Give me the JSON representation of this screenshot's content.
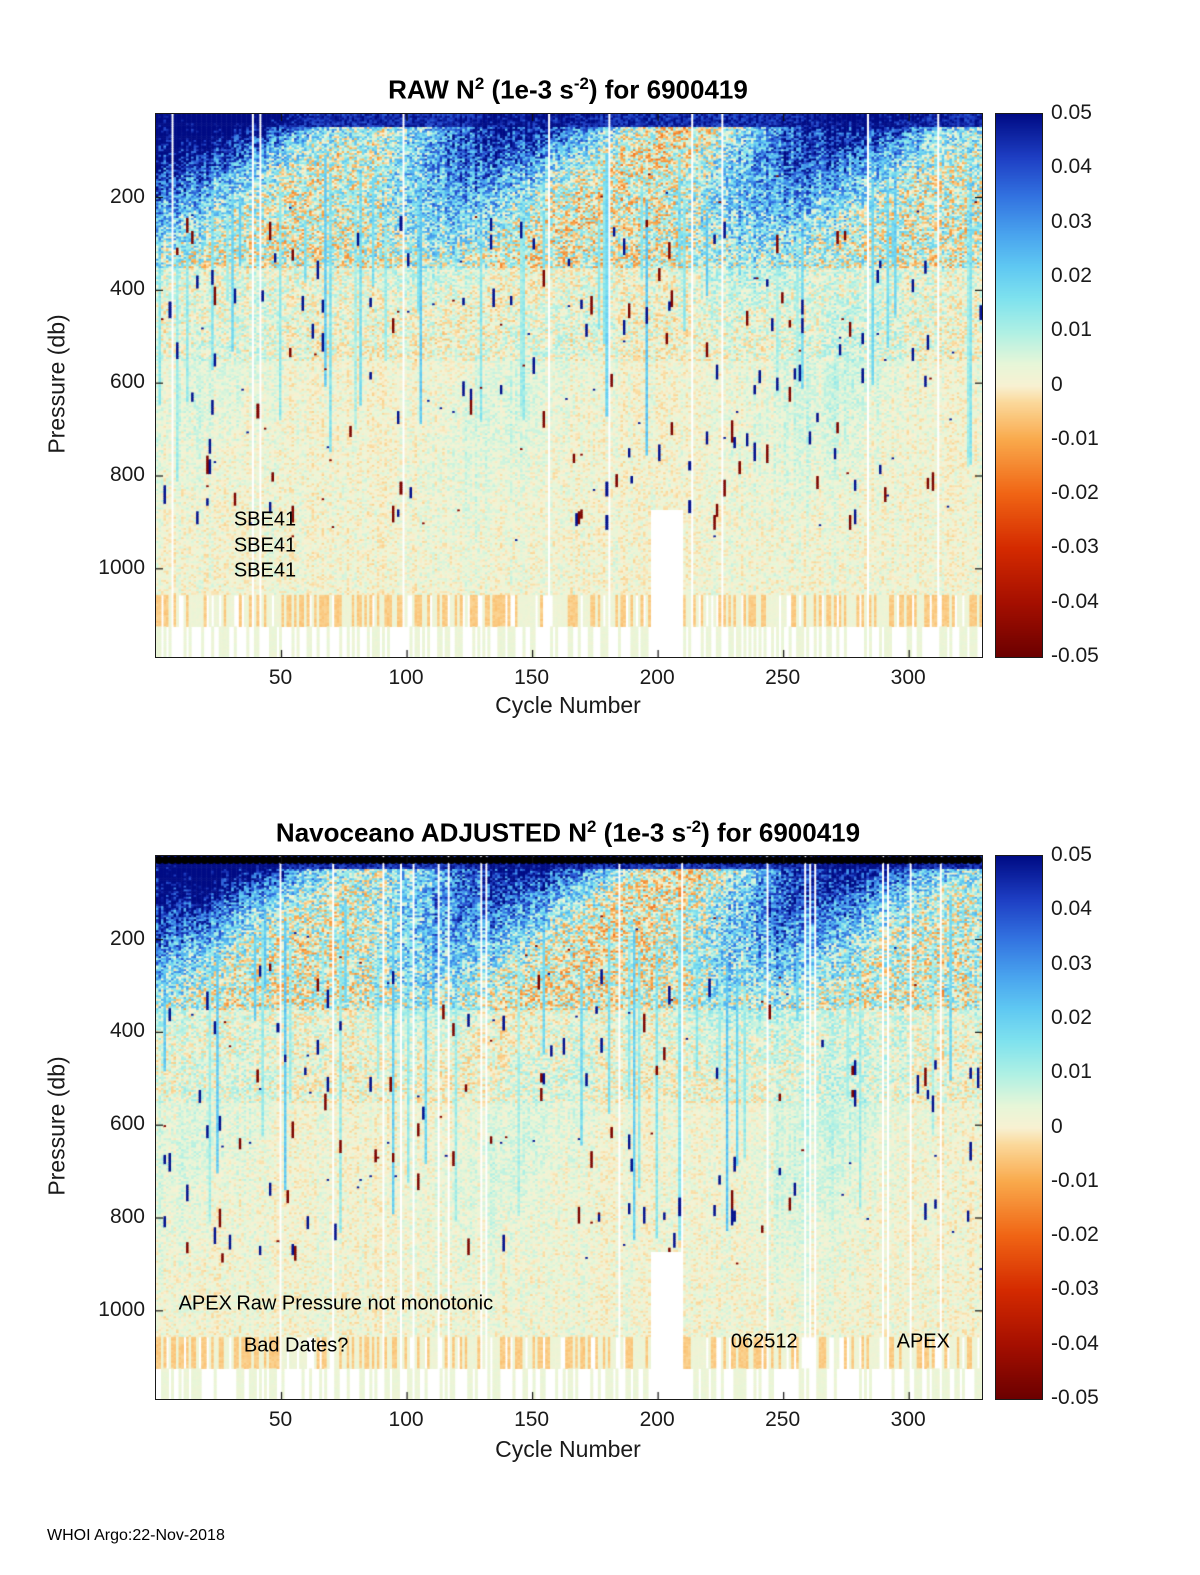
{
  "page": {
    "footer": "WHOI Argo:22-Nov-2018"
  },
  "colormap": {
    "stops": [
      [
        -0.05,
        "#6b0000"
      ],
      [
        -0.04,
        "#a50f00"
      ],
      [
        -0.03,
        "#d42a00"
      ],
      [
        -0.02,
        "#f06414"
      ],
      [
        -0.01,
        "#f9a94b"
      ],
      [
        -0.003,
        "#fbd99b"
      ],
      [
        0.0,
        "#f8f1d2"
      ],
      [
        0.004,
        "#e7f6d8"
      ],
      [
        0.01,
        "#aef0e4"
      ],
      [
        0.016,
        "#7fe2ee"
      ],
      [
        0.022,
        "#5fc8f2"
      ],
      [
        0.028,
        "#49a3ee"
      ],
      [
        0.035,
        "#3272e0"
      ],
      [
        0.042,
        "#1e3fc4"
      ],
      [
        0.05,
        "#000c85"
      ]
    ]
  },
  "chart_data": [
    {
      "type": "heatmap",
      "title_parts": [
        {
          "text": "RAW N"
        },
        {
          "text": "2",
          "sup": true
        },
        {
          "text": " (1e-3 s"
        },
        {
          "text": "-2",
          "sup": true
        },
        {
          "text": ") for 6900419"
        }
      ],
      "xlabel": "Cycle Number",
      "ylabel": "Pressure (db)",
      "x_range": [
        0,
        329
      ],
      "y_range": [
        20,
        1190
      ],
      "x_ticks": [
        50,
        100,
        150,
        200,
        250,
        300
      ],
      "y_ticks": [
        200,
        400,
        600,
        800,
        1000
      ],
      "value_range": [
        -0.05,
        0.05
      ],
      "colorbar_ticks": [
        "0.05",
        "0.04",
        "0.03",
        "0.02",
        "0.01",
        "0",
        "-0.01",
        "-0.02",
        "-0.03",
        "-0.04",
        "-0.05"
      ],
      "annotations": [
        {
          "text": "SBE41",
          "cycle": 31,
          "pressure": 895
        },
        {
          "text": "SBE41",
          "cycle": 31,
          "pressure": 950
        },
        {
          "text": "SBE41",
          "cycle": 31,
          "pressure": 1005
        }
      ],
      "top_markers": false,
      "seed": 20181122,
      "description": "Raw buoyancy frequency squared section for Argo float 6900419: strong stratification (0.03-0.05e-3 s^-2, dark navy) in the upper ~300 db with a patchy wavy base, decaying through cyan (~0.01) to near-zero cream/pale-green below ~500 db; thin light-blue spike columns reach 400-800 db, isolated dark navy and dark red spikes scattered 250-900 db, white vertical stripes are missing cycles, and below ~1060 db only sparse pastel columns remain; white gap near cycles ~197-209 at depth"
    },
    {
      "type": "heatmap",
      "title_parts": [
        {
          "text": "Navoceano  ADJUSTED N"
        },
        {
          "text": "2",
          "sup": true
        },
        {
          "text": " (1e-3 s"
        },
        {
          "text": "-2",
          "sup": true
        },
        {
          "text": ") for 6900419"
        }
      ],
      "xlabel": "Cycle Number",
      "ylabel": "Pressure (db)",
      "x_range": [
        0,
        329
      ],
      "y_range": [
        20,
        1190
      ],
      "x_ticks": [
        50,
        100,
        150,
        200,
        250,
        300
      ],
      "y_ticks": [
        200,
        400,
        600,
        800,
        1000
      ],
      "value_range": [
        -0.05,
        0.05
      ],
      "colorbar_ticks": [
        "0.05",
        "0.04",
        "0.03",
        "0.02",
        "0.01",
        "0",
        "-0.01",
        "-0.02",
        "-0.03",
        "-0.04",
        "-0.05"
      ],
      "annotations": [
        {
          "text": "APEX",
          "cycle": 9,
          "pressure": 985
        },
        {
          "text": "Raw Pressure not monotonic",
          "cycle": 32,
          "pressure": 985
        },
        {
          "text": "Bad Dates?",
          "cycle": 35,
          "pressure": 1075
        },
        {
          "text": "062512",
          "cycle": 229,
          "pressure": 1068
        },
        {
          "text": "APEX",
          "cycle": 295,
          "pressure": 1068
        }
      ],
      "top_markers": true,
      "seed": 6900419,
      "description": "Navoceano adjusted N-squared section, same float and layout as the raw panel, with a dense row of black circular markers along the top axis indicating flagged cycles; field pattern essentially identical to the raw section"
    }
  ]
}
